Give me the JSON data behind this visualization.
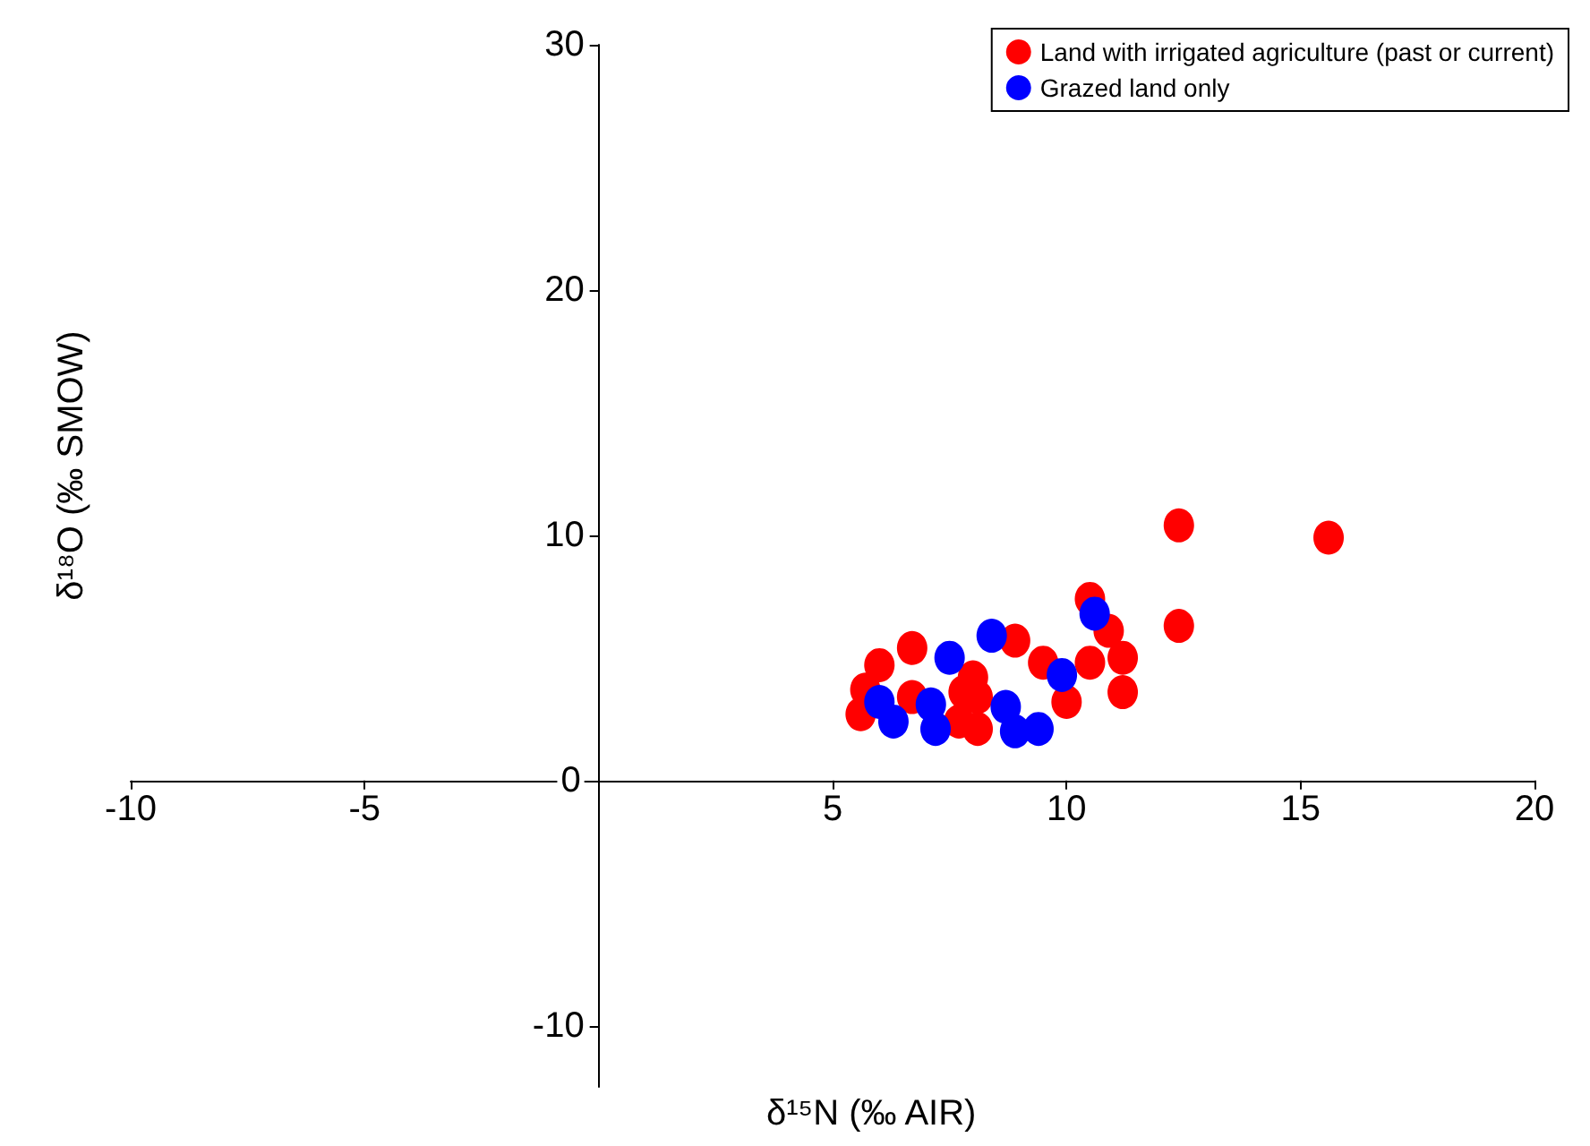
{
  "chart_data": {
    "type": "scatter",
    "xlabel": "δ¹⁵N (‰ AIR)",
    "ylabel": "δ¹⁸O (‰ SMOW)",
    "xlim": [
      -10,
      20
    ],
    "ylim": [
      -12.5,
      30
    ],
    "xticks": [
      -10,
      -5,
      {
        "value": 0,
        "label": null
      },
      5,
      10,
      15,
      20
    ],
    "yticks": [
      -10,
      0,
      10,
      20,
      30
    ],
    "legend": "top right",
    "grid": false,
    "marker": "circle",
    "series": [
      {
        "name": "Land with irrigated agriculture (past or current)",
        "color": "#ff0000",
        "x": [
          12.4,
          15.6,
          12.4,
          6.7,
          6.0,
          5.7,
          5.6,
          6.7,
          8.0,
          8.1,
          8.9,
          9.5,
          10.0,
          10.5,
          10.5,
          10.9,
          11.2,
          11.2,
          7.8,
          8.1,
          7.7
        ],
        "values": [
          10.4,
          9.9,
          6.3,
          5.4,
          4.7,
          3.7,
          2.7,
          3.4,
          4.2,
          2.1,
          5.7,
          4.8,
          3.2,
          4.8,
          7.4,
          6.1,
          5.0,
          3.6,
          3.6,
          3.4,
          2.4
        ]
      },
      {
        "name": "Grazed land only",
        "color": "#0000ff",
        "x": [
          6.0,
          6.3,
          7.5,
          8.4,
          7.1,
          7.2,
          8.7,
          8.9,
          9.4,
          9.9,
          10.6
        ],
        "values": [
          3.2,
          2.4,
          5.0,
          5.9,
          3.1,
          2.1,
          3.0,
          2.0,
          2.1,
          4.3,
          6.8
        ]
      }
    ]
  }
}
